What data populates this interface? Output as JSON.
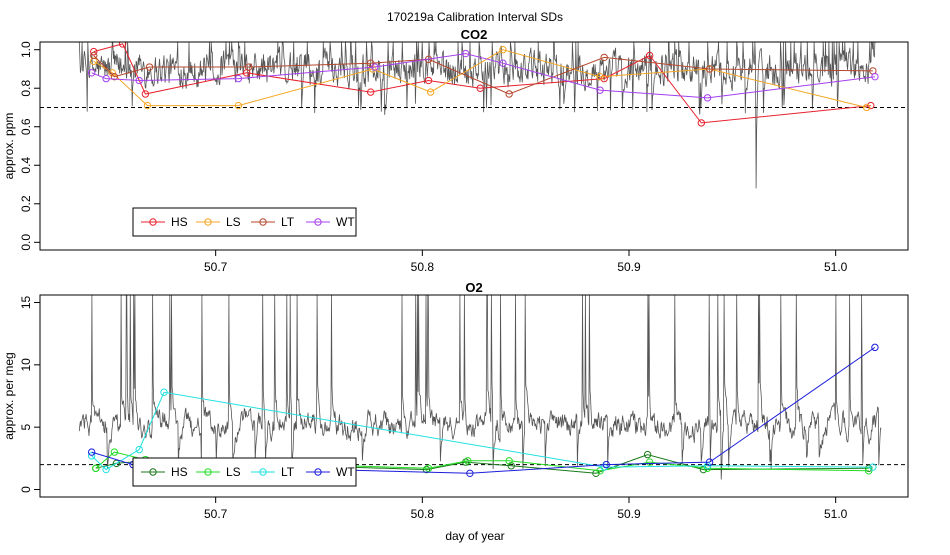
{
  "figure": {
    "title": "170219a   Calibration Interval SDs",
    "xlabel": "day of year"
  },
  "chart_data": [
    {
      "type": "line",
      "title": "CO2",
      "xlabel": "",
      "ylabel": "approx. ppm",
      "xlim": [
        50.615,
        51.035
      ],
      "ylim": [
        -0.04,
        1.04
      ],
      "xticks": [
        50.7,
        50.8,
        50.9,
        51.0
      ],
      "xtick_labels": [
        "50.7",
        "50.8",
        "50.9",
        "51.0"
      ],
      "yticks": [
        0.0,
        0.2,
        0.4,
        0.6,
        0.8,
        1.0
      ],
      "ytick_labels": [
        "0.0",
        "0.2",
        "0.4",
        "0.6",
        "0.8",
        "1.0"
      ],
      "reference_line": 0.7,
      "background_trace": {
        "name": "running SD",
        "color": "#555555",
        "x_range": [
          50.634,
          51.019
        ],
        "min": 0.62,
        "max": 1.04,
        "spike_min": 0.28,
        "level": 0.9
      },
      "legend": {
        "placement": "bottom-left",
        "entries": [
          "HS",
          "LS",
          "LT",
          "WT"
        ]
      },
      "series": [
        {
          "name": "HS",
          "color": "#e8212d",
          "x": [
            50.641,
            50.655,
            50.666,
            50.715,
            50.775,
            50.803,
            50.828,
            50.888,
            50.91,
            50.935,
            51.017
          ],
          "y": [
            0.99,
            1.03,
            0.77,
            0.88,
            0.78,
            0.84,
            0.8,
            0.85,
            0.97,
            0.62,
            0.71
          ]
        },
        {
          "name": "LS",
          "color": "#f5a623",
          "x": [
            50.641,
            50.65,
            50.667,
            50.711,
            50.776,
            50.804,
            50.839,
            50.886,
            50.939,
            51.015
          ],
          "y": [
            0.94,
            0.88,
            0.71,
            0.71,
            0.9,
            0.78,
            1.0,
            0.86,
            0.9,
            0.7
          ]
        },
        {
          "name": "LT",
          "color": "#b5472e",
          "x": [
            50.641,
            50.651,
            50.668,
            50.716,
            50.775,
            50.803,
            50.842,
            50.888,
            50.939,
            51.018
          ],
          "y": [
            0.97,
            0.86,
            0.91,
            0.91,
            0.93,
            0.95,
            0.77,
            0.96,
            0.9,
            0.89
          ]
        },
        {
          "name": "WT",
          "color": "#a43ff0",
          "x": [
            50.64,
            50.647,
            50.663,
            50.711,
            50.777,
            50.821,
            50.839,
            50.886,
            50.938,
            51.019
          ],
          "y": [
            0.88,
            0.85,
            0.84,
            0.85,
            0.91,
            0.98,
            0.93,
            0.79,
            0.75,
            0.86
          ]
        }
      ]
    },
    {
      "type": "line",
      "title": "O2",
      "xlabel": "day of year",
      "ylabel": "approx. per meg",
      "xlim": [
        50.615,
        51.035
      ],
      "ylim": [
        -0.6,
        15.6
      ],
      "xticks": [
        50.7,
        50.8,
        50.9,
        51.0
      ],
      "xtick_labels": [
        "50.7",
        "50.8",
        "50.9",
        "51.0"
      ],
      "yticks": [
        0,
        5,
        10,
        15
      ],
      "ytick_labels": [
        "0",
        "5",
        "10",
        "15"
      ],
      "reference_line": 2.0,
      "background_trace": {
        "name": "running SD",
        "color": "#555555",
        "x_range": [
          50.634,
          51.022
        ],
        "min": 1.5,
        "max": 15.6,
        "spike_min": 0.8,
        "level": 5.2
      },
      "legend": {
        "placement": "bottom-left",
        "entries": [
          "HS",
          "LS",
          "LT",
          "WT"
        ]
      },
      "series": [
        {
          "name": "HS",
          "color": "#1a7a1a",
          "x": [
            50.642,
            50.652,
            50.667,
            50.802,
            50.821,
            50.843,
            50.884,
            50.909,
            50.936,
            51.016
          ],
          "y": [
            1.7,
            2.1,
            2.3,
            1.6,
            2.2,
            1.9,
            1.3,
            2.8,
            1.6,
            1.7
          ]
        },
        {
          "name": "LS",
          "color": "#22dd22",
          "x": [
            50.642,
            50.651,
            50.666,
            50.803,
            50.822,
            50.842,
            50.886,
            50.91,
            50.938,
            51.016
          ],
          "y": [
            1.7,
            3.0,
            2.4,
            1.7,
            2.3,
            2.3,
            1.5,
            2.2,
            1.7,
            1.5
          ]
        },
        {
          "name": "LT",
          "color": "#22e0e0",
          "x": [
            50.64,
            50.647,
            50.663,
            50.675,
            50.888,
            50.938,
            51.018
          ],
          "y": [
            2.7,
            1.6,
            3.2,
            7.8,
            1.8,
            1.9,
            1.8
          ]
        },
        {
          "name": "WT",
          "color": "#1c1cdd",
          "x": [
            50.64,
            50.66,
            50.823,
            50.889,
            50.939,
            51.019
          ],
          "y": [
            3.0,
            2.0,
            1.3,
            2.0,
            2.2,
            11.4
          ]
        }
      ]
    }
  ]
}
